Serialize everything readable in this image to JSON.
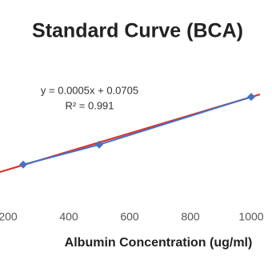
{
  "chart_data": {
    "type": "line",
    "title": "Standard Curve (BCA)",
    "x_label": "Albumin Concentration (ug/ml)",
    "annotations": [
      "y = 0.0005x + 0.0705",
      "R² = 0.991"
    ],
    "x": [
      250,
      500,
      1000
    ],
    "series": [
      {
        "color": "#4472c4",
        "values": [
          0.215,
          0.32,
          0.57
        ]
      }
    ],
    "xlim": [
      0,
      1000
    ],
    "xticks": [
      200,
      400,
      600,
      800,
      1000
    ],
    "ylim": [
      0,
      0.6
    ]
  }
}
